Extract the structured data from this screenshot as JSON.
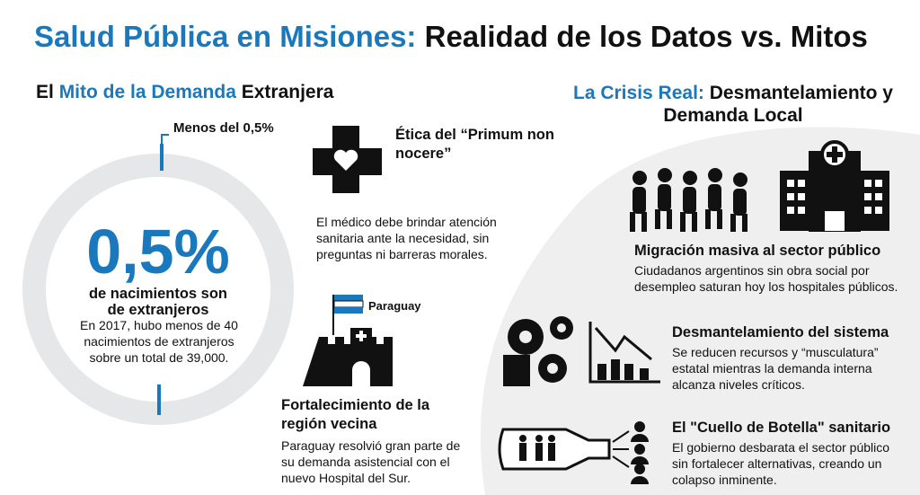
{
  "header": {
    "title_highlight": "Salud Pública en Misiones:",
    "title_rest": "Realidad de los Datos vs. Mitos"
  },
  "left": {
    "heading_pre": "El",
    "heading_highlight": "Mito de la Demanda",
    "heading_post": "Extranjera",
    "donut": {
      "callout": "Menos del 0,5%",
      "big_figure": "0,5%",
      "label": "de nacimientos son de extranjeros",
      "note": "En 2017, hubo menos de 40 nacimientos de extranjeros sobre un total de 39,000."
    },
    "ethics": {
      "title": "Ética del “Primum non nocere”",
      "text": "El médico debe brindar atención sanitaria ante la necesidad, sin preguntas ni barreras morales."
    },
    "paraguay": {
      "flag_label": "Paraguay",
      "title": "Fortalecimiento de la región vecina",
      "text": "Paraguay resolvió gran parte de su demanda asistencial con el nuevo Hospital del Sur."
    }
  },
  "right": {
    "heading_highlight": "La Crisis Real:",
    "heading_rest": "Desmantelamiento y Demanda Local",
    "items": [
      {
        "title": "Migración masiva al sector público",
        "text": "Ciudadanos argentinos sin obra social por desempleo saturan hoy los hospitales públicos."
      },
      {
        "title": "Desmantelamiento del sistema",
        "text": "Se reducen recursos y “musculatura” estatal mientras la demanda interna alcanza niveles críticos."
      },
      {
        "title": "El \"Cuello de Botella\" sanitario",
        "text": "El gobierno desbarata el sector público sin fortalecer alternativas, creando un colapso inminente."
      }
    ]
  }
}
